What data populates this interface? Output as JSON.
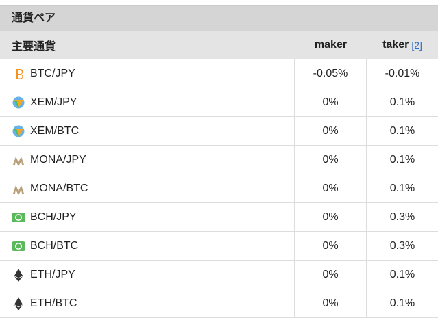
{
  "section_title": "通貨ペア",
  "table": {
    "header": [
      "主要通貨",
      "maker",
      "taker"
    ],
    "footnote": "[2]",
    "rows": [
      [
        "BTC/JPY",
        "-0.05%",
        "-0.01%"
      ],
      [
        "XEM/JPY",
        "0%",
        "0.1%"
      ],
      [
        "XEM/BTC",
        "0%",
        "0.1%"
      ],
      [
        "MONA/JPY",
        "0%",
        "0.1%"
      ],
      [
        "MONA/BTC",
        "0%",
        "0.1%"
      ],
      [
        "BCH/JPY",
        "0%",
        "0.3%"
      ],
      [
        "BCH/BTC",
        "0%",
        "0.3%"
      ],
      [
        "ETH/JPY",
        "0%",
        "0.1%"
      ],
      [
        "ETH/BTC",
        "0%",
        "0.1%"
      ]
    ]
  }
}
